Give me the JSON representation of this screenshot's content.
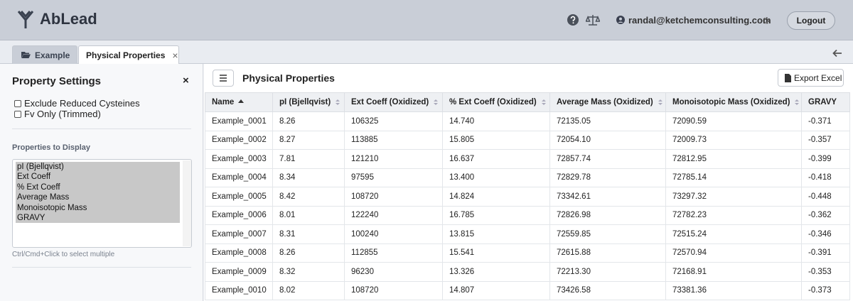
{
  "header": {
    "brand": "AbLead",
    "user": "randal@ketchemconsulting.com",
    "logout": "Logout"
  },
  "tabs": [
    "Example",
    "Physical Properties"
  ],
  "tab_close": "×",
  "sidebar": {
    "title": "Property Settings",
    "close": "×",
    "checkboxes": [
      "Exclude Reduced Cysteines",
      "Fv Only (Trimmed)"
    ],
    "properties_label": "Properties to Display",
    "options": [
      "pI (Bjellqvist)",
      "Ext Coeff",
      "% Ext Coeff",
      "Average Mass",
      "Monoisotopic Mass",
      "GRAVY"
    ],
    "hint": "Ctrl/Cmd+Click to select multiple"
  },
  "main": {
    "title": "Physical Properties",
    "export": "Export Excel"
  },
  "table": {
    "columns": [
      "Name",
      "pI (Bjellqvist)",
      "Ext Coeff (Oxidized)",
      "% Ext Coeff (Oxidized)",
      "Average Mass (Oxidized)",
      "Monoisotopic Mass (Oxidized)",
      "GRAVY"
    ],
    "rows": [
      [
        "Example_0001",
        "8.26",
        "106325",
        "14.740",
        "72135.05",
        "72090.59",
        "-0.371"
      ],
      [
        "Example_0002",
        "8.27",
        "113885",
        "15.805",
        "72054.10",
        "72009.73",
        "-0.357"
      ],
      [
        "Example_0003",
        "7.81",
        "121210",
        "16.637",
        "72857.74",
        "72812.95",
        "-0.399"
      ],
      [
        "Example_0004",
        "8.34",
        "97595",
        "13.400",
        "72829.78",
        "72785.14",
        "-0.418"
      ],
      [
        "Example_0005",
        "8.42",
        "108720",
        "14.824",
        "73342.61",
        "73297.32",
        "-0.448"
      ],
      [
        "Example_0006",
        "8.01",
        "122240",
        "16.785",
        "72826.98",
        "72782.23",
        "-0.362"
      ],
      [
        "Example_0007",
        "8.31",
        "100240",
        "13.815",
        "72559.85",
        "72515.24",
        "-0.346"
      ],
      [
        "Example_0008",
        "8.26",
        "112855",
        "15.541",
        "72615.88",
        "72570.94",
        "-0.391"
      ],
      [
        "Example_0009",
        "8.32",
        "96230",
        "13.326",
        "72213.30",
        "72168.91",
        "-0.353"
      ],
      [
        "Example_0010",
        "8.02",
        "108720",
        "14.807",
        "73426.58",
        "73381.36",
        "-0.373"
      ]
    ]
  }
}
